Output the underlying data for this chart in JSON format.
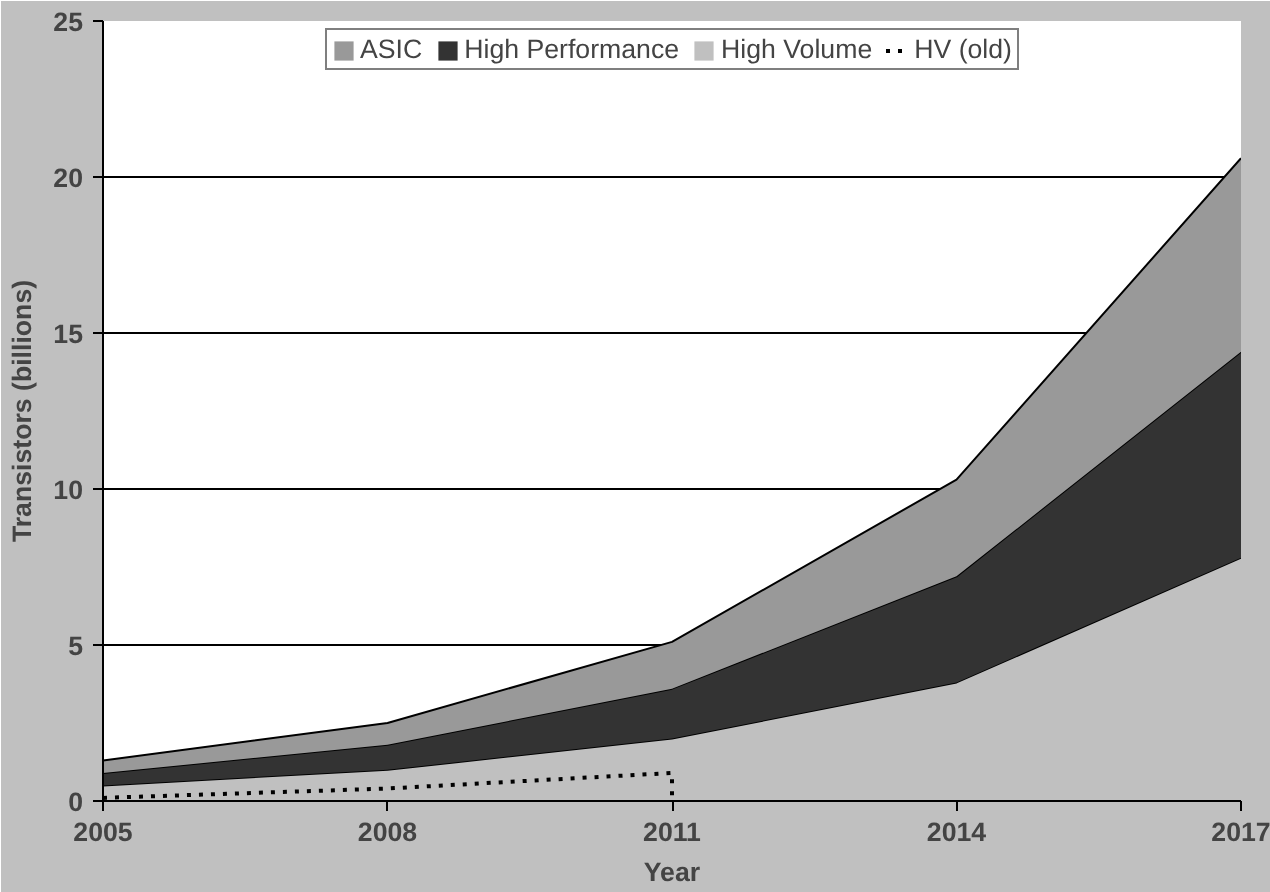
{
  "chart_data": {
    "type": "area",
    "stacked": true,
    "xlabel": "Year",
    "ylabel": "Transistors (billions)",
    "x": [
      2005,
      2008,
      2011,
      2014,
      2017
    ],
    "series": [
      {
        "name": "High Volume",
        "color": "#c0c0c0",
        "values": [
          0.5,
          1.0,
          2.0,
          3.8,
          7.8
        ]
      },
      {
        "name": "High Performance",
        "color": "#333333",
        "values": [
          0.4,
          0.8,
          1.6,
          3.4,
          6.6
        ]
      },
      {
        "name": "ASIC",
        "color": "#999999",
        "values": [
          0.4,
          0.7,
          1.5,
          3.1,
          6.2
        ]
      },
      {
        "name": "HV (old)",
        "color": "#000000",
        "type": "line",
        "line_style": "dotted",
        "x": [
          2005,
          2008,
          2011,
          2011
        ],
        "values": [
          0.1,
          0.4,
          0.9,
          0
        ]
      }
    ],
    "xlim": [
      2005,
      2017
    ],
    "xticks": [
      2005,
      2008,
      2011,
      2014,
      2017
    ],
    "ylim": [
      0,
      25
    ],
    "yticks": [
      0,
      5,
      10,
      15,
      20,
      25
    ],
    "grid": "y",
    "legend": "top"
  }
}
